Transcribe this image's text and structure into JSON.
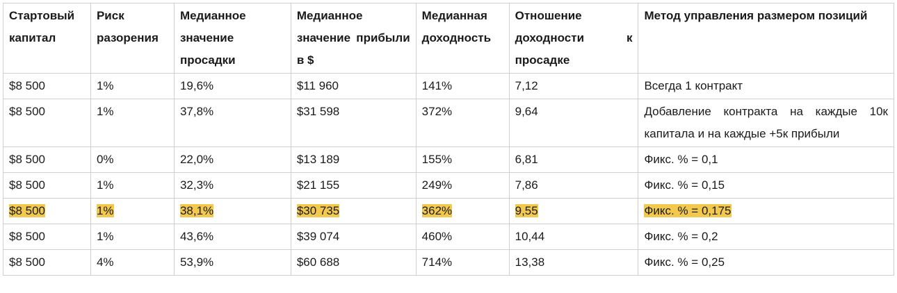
{
  "table": {
    "header": [
      "Стартовый капитал",
      "Риск разорения",
      "Медианное значение просадки",
      "Медианное значение прибыли в $",
      "Медианная доходность",
      "Отношение доходности к просадке",
      "Метод управления размером позиций"
    ],
    "rows": [
      [
        "$8 500",
        "1%",
        "19,6%",
        "$11 960",
        "141%",
        "7,12",
        "Всегда 1 контракт"
      ],
      [
        "$8 500",
        "1%",
        "37,8%",
        "$31 598",
        "372%",
        "9,64",
        "Добавление контракта на каждые 10к капитала и на каждые +5к прибыли"
      ],
      [
        "$8 500",
        "0%",
        "22,0%",
        "$13 189",
        "155%",
        "6,81",
        "Фикс. % = 0,1"
      ],
      [
        "$8 500",
        "1%",
        "32,3%",
        "$21 155",
        "249%",
        "7,86",
        "Фикс. % = 0,15"
      ],
      [
        "$8 500",
        "1%",
        "38,1%",
        "$30 735",
        "362%",
        "9,55",
        "Фикс. % = 0,175"
      ],
      [
        "$8 500",
        "1%",
        "43,6%",
        "$39 074",
        "460%",
        "10,44",
        "Фикс. % = 0,2"
      ],
      [
        "$8 500",
        "4%",
        "53,9%",
        "$60 688",
        "714%",
        "13,38",
        "Фикс. % = 0,25"
      ]
    ],
    "highlighted_row": 4,
    "highlight_color": "#f2c94c"
  }
}
